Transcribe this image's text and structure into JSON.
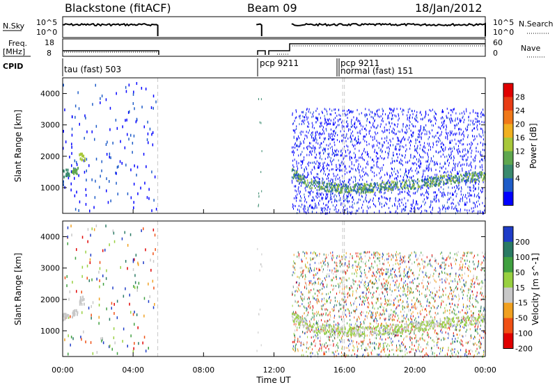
{
  "header": {
    "station": "Blackstone (fitACF)",
    "beam": "Beam 09",
    "date": "18/Jan/2012"
  },
  "noise_panel": {
    "left_label": "N.Sky",
    "left_ticks": [
      "10^5",
      "10^0"
    ],
    "right_label": "N.Search",
    "right_ticks": [
      "10^5",
      "10^0"
    ]
  },
  "freq_panel": {
    "left_label_line1": "Freq.",
    "left_label_line2": "[MHz]",
    "left_ticks": [
      "18",
      "8"
    ],
    "right_label": "Nave",
    "right_ticks": [
      "60",
      "0"
    ]
  },
  "cpid_panel": {
    "label": "CPID",
    "modes": [
      {
        "text": "tau (fast) 503"
      },
      {
        "text": "pcp 9211"
      },
      {
        "text": "pcp 9211"
      },
      {
        "text": "normal (fast) 151"
      }
    ]
  },
  "power_panel": {
    "ylabel": "Slant Range [km]",
    "yticks": [
      "4000",
      "3000",
      "2000",
      "1000"
    ],
    "colorbar_label": "Power [dB]",
    "colorbar_ticks": [
      "28",
      "24",
      "20",
      "16",
      "12",
      "8",
      "4"
    ]
  },
  "velocity_panel": {
    "ylabel": "Slant Range [km]",
    "yticks": [
      "4000",
      "3000",
      "2000",
      "1000"
    ],
    "colorbar_label": "Velocity [m s^-1]",
    "colorbar_ticks": [
      "200",
      "100",
      "50",
      "15",
      "-15",
      "-50",
      "-100",
      "-200"
    ]
  },
  "x_axis": {
    "label": "Time UT",
    "ticks": [
      "00:00",
      "04:00",
      "08:00",
      "12:00",
      "16:00",
      "20:00",
      "00:00"
    ]
  },
  "colors": {
    "power_scale": [
      "#0000ff",
      "#1e5cc8",
      "#3a8a6e",
      "#5fa74f",
      "#a8c83a",
      "#f0b020",
      "#f07818",
      "#e83c14",
      "#e00000"
    ],
    "velocity_scale": [
      "#e00000",
      "#f05014",
      "#f0a020",
      "#c8c8c8",
      "#98d040",
      "#40a040",
      "#2a7a64",
      "#1e3cc8"
    ]
  },
  "chart_data": {
    "type": "heatmap",
    "x": {
      "unit": "hour UT",
      "range": [
        0,
        24
      ]
    },
    "y": {
      "unit": "km",
      "range": [
        180,
        4500
      ]
    },
    "data_intervals_hours": [
      [
        0.0,
        5.4
      ],
      [
        11.0,
        11.3
      ],
      [
        13.0,
        24.0
      ]
    ],
    "backscatter_band_km": [
      {
        "t": 13.0,
        "r": 1500
      },
      {
        "t": 14.0,
        "r": 1150
      },
      {
        "t": 15.0,
        "r": 1050
      },
      {
        "t": 16.0,
        "r": 1000
      },
      {
        "t": 17.0,
        "r": 1000
      },
      {
        "t": 18.0,
        "r": 1050
      },
      {
        "t": 20.0,
        "r": 1150
      },
      {
        "t": 22.0,
        "r": 1300
      },
      {
        "t": 24.0,
        "r": 1400
      }
    ],
    "early_echo_km": [
      {
        "t": 0.0,
        "r": 1500
      },
      {
        "t": 0.5,
        "r": 1600
      },
      {
        "t": 0.9,
        "r": 2000
      }
    ]
  }
}
